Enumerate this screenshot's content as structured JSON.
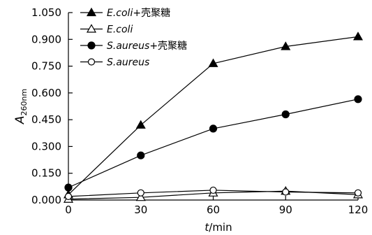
{
  "chart_data": {
    "type": "line",
    "x": [
      0,
      30,
      60,
      90,
      120
    ],
    "xlim": [
      0,
      120
    ],
    "ylim": [
      0,
      1.05
    ],
    "x_ticks": [
      "0",
      "30",
      "60",
      "90",
      "120"
    ],
    "y_ticks": [
      "0.000",
      "0.150",
      "0.300",
      "0.450",
      "0.600",
      "0.750",
      "0.900",
      "1.050"
    ],
    "xlabel_var": "t",
    "xlabel_unit": "/min",
    "ylabel_var": "A",
    "ylabel_sub": "260nm",
    "grid": false,
    "legend_position": "top-left",
    "series": [
      {
        "legend_species": "E.coli",
        "legend_suffix": "+壳聚糖",
        "marker": "triangle-filled",
        "values": [
          0.03,
          0.42,
          0.765,
          0.86,
          0.915
        ]
      },
      {
        "legend_species": "E.coli",
        "legend_suffix": "",
        "marker": "triangle-open",
        "values": [
          0.005,
          0.015,
          0.04,
          0.05,
          0.03
        ]
      },
      {
        "legend_species": "S.aureus",
        "legend_suffix": "+壳聚糖",
        "marker": "circle-filled",
        "values": [
          0.07,
          0.25,
          0.4,
          0.48,
          0.565
        ]
      },
      {
        "legend_species": "S.aureus",
        "legend_suffix": "",
        "marker": "circle-open",
        "values": [
          0.02,
          0.04,
          0.055,
          0.045,
          0.04
        ]
      }
    ]
  }
}
